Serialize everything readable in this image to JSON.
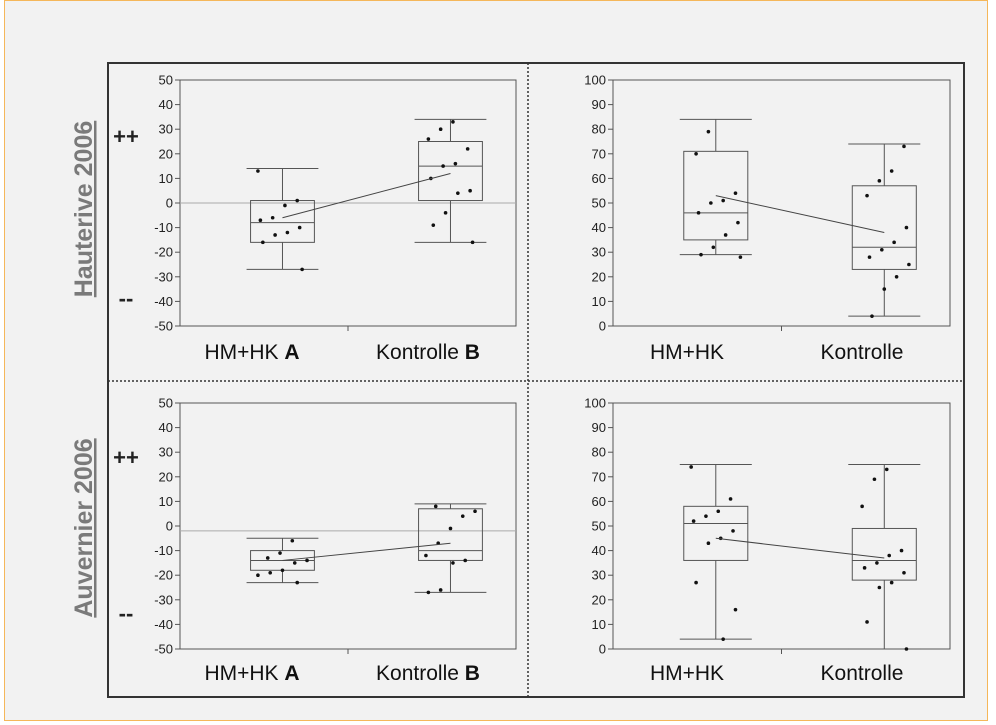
{
  "row_labels": [
    "Hauterive 2006",
    "Auvernier 2006"
  ],
  "symbols": {
    "plus": "++",
    "minus": "--"
  },
  "colors": {
    "frame": "#333333",
    "box": "#555555",
    "point": "#111111",
    "zero_line": "#aaaaaa",
    "row_label": "#7a7a7a",
    "border": "#f5b75a"
  },
  "chart_data": [
    {
      "type": "box",
      "row": 0,
      "col": 0,
      "categories": [
        {
          "text": "HM+HK ",
          "bold": "A"
        },
        {
          "text": "Kontrolle ",
          "bold": "B"
        }
      ],
      "ylim": [
        -50,
        50
      ],
      "yticks": [
        -50,
        -40,
        -30,
        -20,
        -10,
        0,
        10,
        20,
        30,
        40,
        50
      ],
      "reference_line": 0,
      "boxes": [
        {
          "whisker_low": -27,
          "q1": -16,
          "median": -8,
          "q3": 1,
          "whisker_high": 14,
          "mean": -6,
          "points": [
            13,
            1,
            -1,
            -6,
            -7,
            -10,
            -12,
            -13,
            -16,
            -27
          ]
        },
        {
          "whisker_low": -16,
          "q1": 1,
          "median": 15,
          "q3": 25,
          "whisker_high": 34,
          "mean": 12,
          "points": [
            33,
            30,
            26,
            22,
            16,
            15,
            10,
            5,
            4,
            -4,
            -9,
            -16
          ]
        }
      ]
    },
    {
      "type": "box",
      "row": 0,
      "col": 1,
      "categories": [
        {
          "text": "HM+HK",
          "bold": ""
        },
        {
          "text": "Kontrolle",
          "bold": ""
        }
      ],
      "ylim": [
        0,
        100
      ],
      "yticks": [
        0,
        10,
        20,
        30,
        40,
        50,
        60,
        70,
        80,
        90,
        100
      ],
      "reference_line": null,
      "boxes": [
        {
          "whisker_low": 29,
          "q1": 35,
          "median": 46,
          "q3": 71,
          "whisker_high": 84,
          "mean": 53,
          "points": [
            79,
            70,
            54,
            51,
            50,
            46,
            42,
            37,
            32,
            29,
            28
          ]
        },
        {
          "whisker_low": 4,
          "q1": 23,
          "median": 32,
          "q3": 57,
          "whisker_high": 74,
          "mean": 38,
          "points": [
            73,
            63,
            59,
            53,
            40,
            34,
            31,
            28,
            25,
            20,
            15,
            4
          ]
        }
      ]
    },
    {
      "type": "box",
      "row": 1,
      "col": 0,
      "categories": [
        {
          "text": "HM+HK ",
          "bold": "A"
        },
        {
          "text": "Kontrolle ",
          "bold": "B"
        }
      ],
      "ylim": [
        -50,
        50
      ],
      "yticks": [
        -50,
        -40,
        -30,
        -20,
        -10,
        0,
        10,
        20,
        30,
        40,
        50
      ],
      "reference_line": -2,
      "boxes": [
        {
          "whisker_low": -23,
          "q1": -18,
          "median": -14,
          "q3": -10,
          "whisker_high": -5,
          "mean": -14,
          "points": [
            -6,
            -11,
            -13,
            -14,
            -15,
            -18,
            -19,
            -20,
            -23
          ]
        },
        {
          "whisker_low": -27,
          "q1": -14,
          "median": -10,
          "q3": 7,
          "whisker_high": 9,
          "mean": -7,
          "points": [
            8,
            6,
            4,
            -1,
            -7,
            -12,
            -14,
            -15,
            -26,
            -27
          ]
        }
      ]
    },
    {
      "type": "box",
      "row": 1,
      "col": 1,
      "categories": [
        {
          "text": "HM+HK",
          "bold": ""
        },
        {
          "text": "Kontrolle",
          "bold": ""
        }
      ],
      "ylim": [
        0,
        100
      ],
      "yticks": [
        0,
        10,
        20,
        30,
        40,
        50,
        60,
        70,
        80,
        90,
        100
      ],
      "reference_line": null,
      "boxes": [
        {
          "whisker_low": 4,
          "q1": 36,
          "median": 51,
          "q3": 58,
          "whisker_high": 75,
          "mean": 45,
          "points": [
            74,
            61,
            56,
            54,
            52,
            48,
            45,
            43,
            27,
            16,
            4
          ]
        },
        {
          "whisker_low": 0,
          "q1": 28,
          "median": 36,
          "q3": 49,
          "whisker_high": 75,
          "mean": 37,
          "points": [
            73,
            69,
            58,
            40,
            38,
            35,
            33,
            31,
            27,
            25,
            11,
            0
          ]
        }
      ]
    }
  ]
}
